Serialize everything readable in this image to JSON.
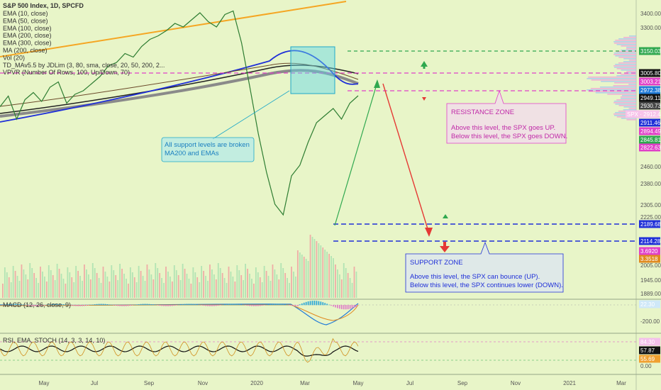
{
  "title": "S&P 500 Index, 1D, SPCFD",
  "indicators": [
    "EMA (10, close)",
    "EMA (50, close)",
    "EMA (100, close)",
    "EMA (200, close)",
    "EMA (300, close)",
    "MA (200, close)",
    "Vol (20)",
    "TD_MAv5.5 by JDLim (3, 80, sma, close, 20, 50, 200, 2...",
    "VPVR (Number Of Rows, 100, Up/Down, 70)"
  ],
  "macd_label": "MACD (12, 26, close, 9)",
  "rsi_label": "RSI, EMA, STOCH (14, 3, 3, 14, 10)",
  "colors": {
    "background": "#e8f5c8",
    "up": "#26a65b",
    "down": "#e53935",
    "resistance": "#e040c8",
    "support": "#1f2fd8",
    "callout": "#1565c0"
  },
  "annotations": {
    "broken_support": [
      "All support levels are broken",
      "MA200 and EMAs"
    ],
    "resistance_zone": {
      "title": "RESISTANCE ZONE",
      "line1": "Above this level, the SPX goes UP.",
      "line2": "Below this level, the SPX goes DOWN."
    },
    "support_zone": {
      "title": "SUPPORT ZONE",
      "line1": "Above this level, the SPX can bounce (UP).",
      "line2": "Below this level, the SPX continues lower (DOWN)."
    }
  },
  "chart_data": {
    "type": "line",
    "title": "S&P 500 Index, 1D, SPCFD",
    "x_tick_labels": [
      "May",
      "Jul",
      "Sep",
      "Nov",
      "2020",
      "Mar",
      "May",
      "Jul",
      "Sep",
      "Nov",
      "2021",
      "Mar"
    ],
    "price_axis": {
      "ticks": [
        "3400.00",
        "3300.00",
        "3150.03",
        "2460.00",
        "2380.00",
        "2305.00",
        "2225.00",
        "2005.00",
        "1945.00",
        "1889.00"
      ],
      "ylim": [
        1880,
        3440
      ]
    },
    "price_series": [
      2850,
      2910,
      2780,
      2890,
      2930,
      2880,
      2960,
      2990,
      2870,
      2920,
      2940,
      2980,
      3020,
      3080,
      3100,
      3150,
      3130,
      3190,
      3230,
      3250,
      3280,
      3320,
      3300,
      3340,
      3380,
      3330,
      3300,
      3370,
      3390,
      3210,
      2960,
      2700,
      2480,
      2300,
      2240,
      2460,
      2520,
      2650,
      2760,
      2800,
      2840,
      2780,
      2870,
      2912
    ],
    "price_labels": [
      {
        "text": "3150.03",
        "color": "#2fa84f"
      },
      {
        "text": "3005.80",
        "color": "#111111"
      },
      {
        "text": "3003.21",
        "color": "#e040c8"
      },
      {
        "text": "2972.38",
        "color": "#1f7ad8"
      },
      {
        "text": "2949.11",
        "color": "#111111"
      },
      {
        "text": "2930.73",
        "color": "#444444"
      },
      {
        "text": "SPX · 2912.44",
        "color": "#f7c4ea"
      },
      {
        "text": "2911.46",
        "color": "#1f2fd8"
      },
      {
        "text": "2894.49",
        "color": "#e040c8"
      },
      {
        "text": "2845.81",
        "color": "#2fa84f"
      },
      {
        "text": "2822.63",
        "color": "#e040c8"
      },
      {
        "text": "2189.68",
        "color": "#1f2fd8"
      },
      {
        "text": "2114.28",
        "color": "#1f2fd8"
      },
      {
        "text": "3.6920",
        "color": "#e040c8"
      },
      {
        "text": "3.3518",
        "color": "#e08a20"
      }
    ],
    "levels": {
      "resistance": [
        3003.21,
        2972.38
      ],
      "support": [
        2189.68,
        2114.28
      ],
      "upper_target": 3150.03,
      "high_line": 3005.8
    },
    "macd_axis": {
      "ticks": [
        "22.30",
        "-200.00"
      ]
    },
    "rsi_axis": {
      "ticks": [
        "84.30",
        "57.87",
        "55.69",
        "0.00"
      ]
    },
    "grid": false
  }
}
